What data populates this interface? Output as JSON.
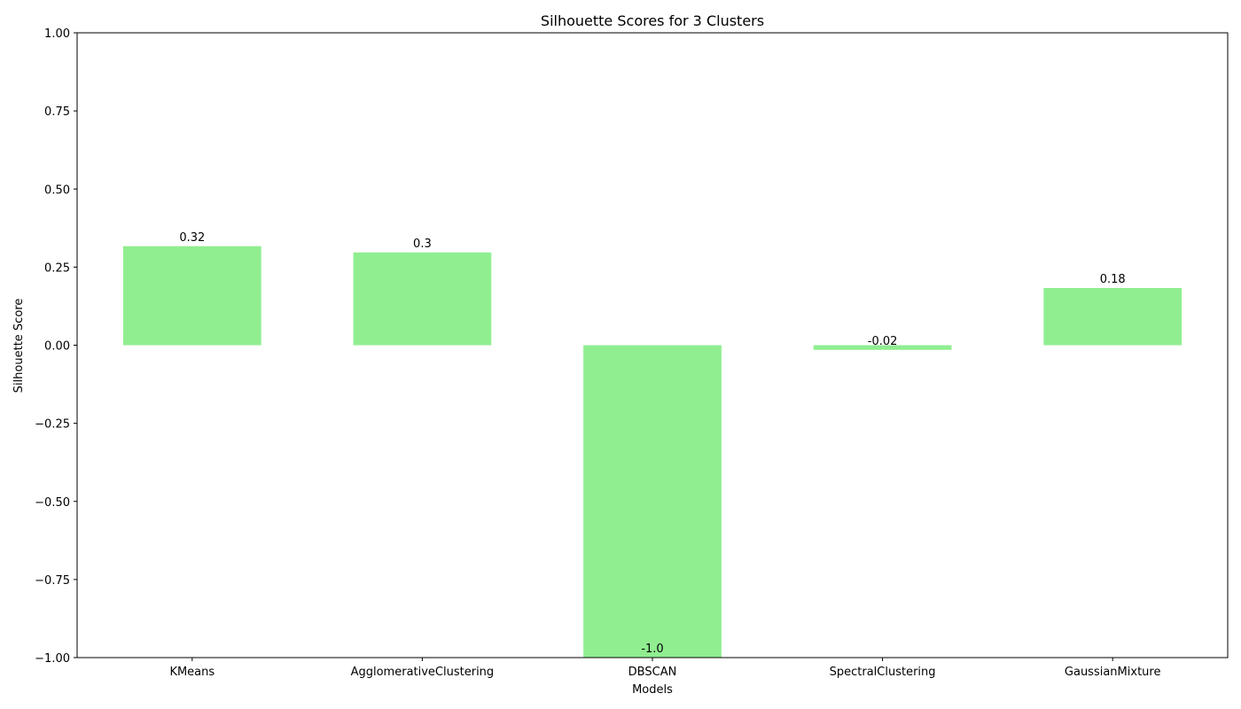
{
  "chart_data": {
    "type": "bar",
    "title": "Silhouette Scores for 3 Clusters",
    "xlabel": "Models",
    "ylabel": "Silhouette Score",
    "categories": [
      "KMeans",
      "AgglomerativeClustering",
      "DBSCAN",
      "SpectralClustering",
      "GaussianMixture"
    ],
    "values": [
      0.317,
      0.297,
      -1.0,
      -0.015,
      0.183
    ],
    "data_labels": [
      "0.32",
      "0.3",
      "-1.0",
      "-0.02",
      "0.18"
    ],
    "ylim": [
      -1.0,
      1.0
    ],
    "yticks": [
      -1.0,
      -0.75,
      -0.5,
      -0.25,
      0.0,
      0.25,
      0.5,
      0.75,
      1.0
    ],
    "ytick_labels": [
      "−1.00",
      "−0.75",
      "−0.50",
      "−0.25",
      "0.00",
      "0.25",
      "0.50",
      "0.75",
      "1.00"
    ],
    "bar_color": "#90ee90",
    "grid": false,
    "legend": "none"
  }
}
